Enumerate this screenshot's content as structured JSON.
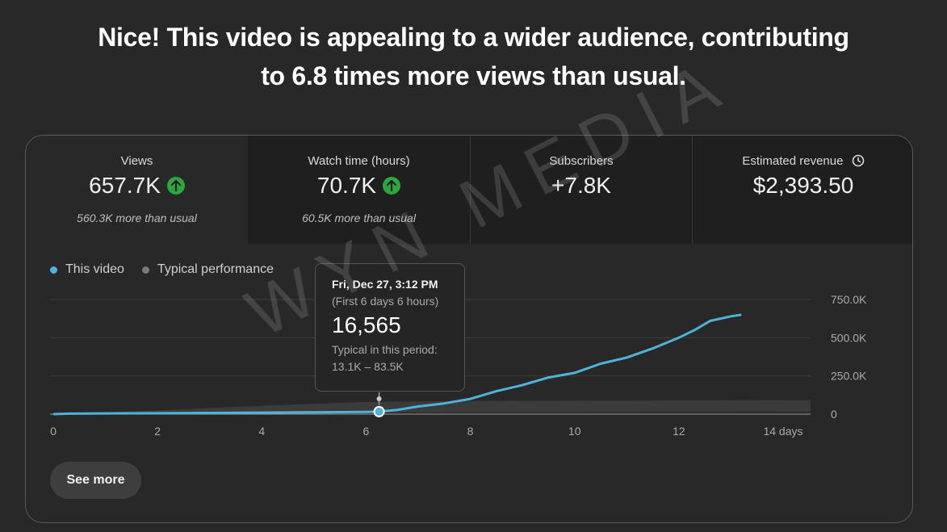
{
  "headline": {
    "line1": "Nice! This video is appealing to a wider audience, contributing",
    "line2": "to 6.8 times more views than usual."
  },
  "metrics": [
    {
      "title": "Views",
      "value": "657.7K",
      "sub": "560.3K more than usual",
      "trend": "up"
    },
    {
      "title": "Watch time (hours)",
      "value": "70.7K",
      "sub": "60.5K more than usual",
      "trend": "up"
    },
    {
      "title": "Subscribers",
      "value": "+7.8K",
      "sub": ""
    },
    {
      "title": "Estimated revenue",
      "value": "$2,393.50",
      "sub": "",
      "icon": "clock-icon"
    }
  ],
  "legend": {
    "this_video": "This video",
    "typical": "Typical performance"
  },
  "tooltip": {
    "date": "Fri, Dec 27, 3:12 PM",
    "period": "(First 6 days 6 hours)",
    "value": "16,565",
    "typical_label": "Typical in this period:",
    "typical_range": "13.1K – 83.5K"
  },
  "see_more_label": "See more",
  "watermark": "WYN MEDIA",
  "colors": {
    "series": "#4fb3d9",
    "typical_band": "#3d3d3d",
    "up_badge": "#2ba640"
  },
  "chart_data": {
    "type": "line",
    "x_ticks": [
      "0",
      "2",
      "4",
      "6",
      "8",
      "10",
      "12",
      "14 days"
    ],
    "y_ticks": [
      "0",
      "250.0K",
      "500.0K",
      "750.0K"
    ],
    "xlim": [
      0,
      14
    ],
    "ylim": [
      0,
      750000
    ],
    "series": [
      {
        "name": "This video",
        "x": [
          0,
          0.3,
          1,
          2,
          3,
          4,
          5,
          6,
          6.25,
          6.6,
          7,
          7.5,
          8,
          8.5,
          9,
          9.5,
          10,
          10.5,
          11,
          11.5,
          12,
          12.3,
          12.6,
          13,
          13.2
        ],
        "y": [
          0,
          3000,
          4500,
          6000,
          8000,
          10000,
          12000,
          15000,
          16565,
          28000,
          50000,
          70000,
          100000,
          150000,
          190000,
          240000,
          270000,
          330000,
          370000,
          430000,
          500000,
          550000,
          610000,
          640000,
          650000
        ]
      },
      {
        "name": "Typical performance",
        "x": [
          0,
          2,
          4,
          6,
          8,
          10,
          12,
          14
        ],
        "y_low": [
          0,
          2000,
          5000,
          9000,
          11000,
          12000,
          13000,
          14000
        ],
        "y_high": [
          0,
          25000,
          55000,
          80000,
          86000,
          88000,
          90000,
          92000
        ]
      }
    ],
    "highlight": {
      "x": 6.25,
      "y": 16565
    }
  }
}
